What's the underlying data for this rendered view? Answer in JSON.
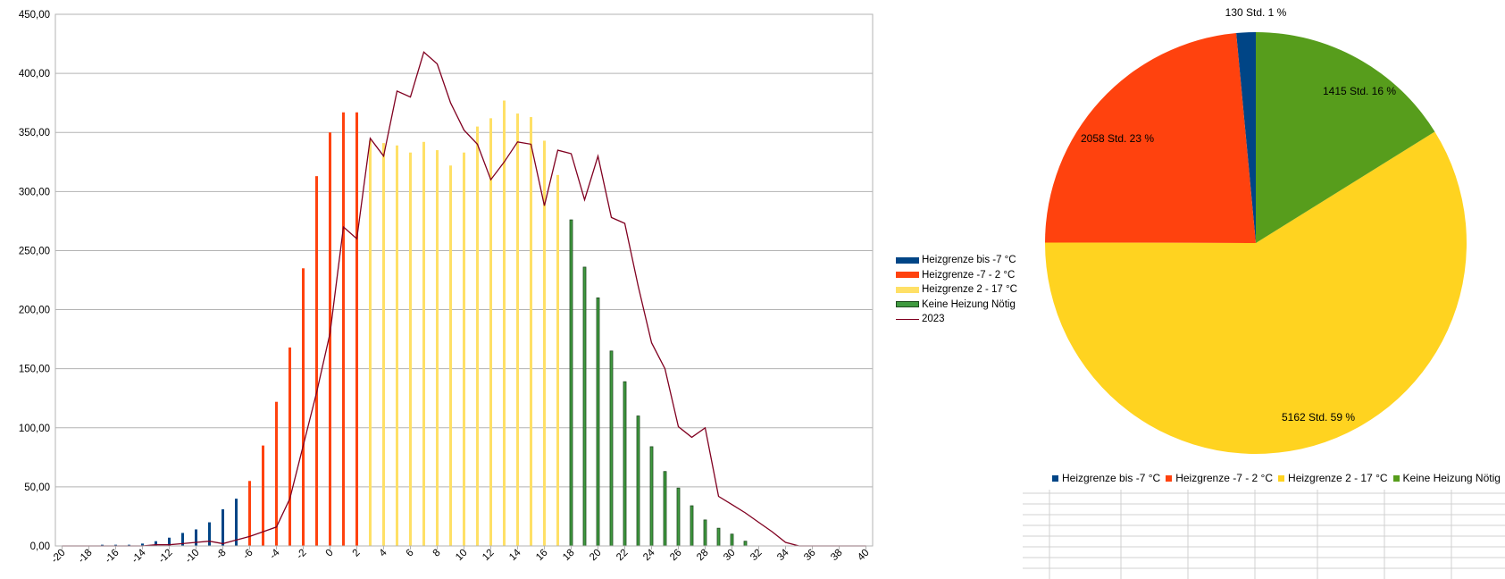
{
  "chart_data": [
    {
      "type": "bar",
      "title": "",
      "xlabel": "",
      "ylabel": "",
      "ylim": [
        0,
        450
      ],
      "ytick_labels": [
        "0,00",
        "50,00",
        "100,00",
        "150,00",
        "200,00",
        "250,00",
        "300,00",
        "350,00",
        "400,00",
        "450,00"
      ],
      "grid": true,
      "legend_position": "right",
      "x": [
        -20,
        -19,
        -18,
        -17,
        -16,
        -15,
        -14,
        -13,
        -12,
        -11,
        -10,
        -9,
        -8,
        -7,
        -6,
        -5,
        -4,
        -3,
        -2,
        -1,
        0,
        1,
        2,
        3,
        4,
        5,
        6,
        7,
        8,
        9,
        10,
        11,
        12,
        13,
        14,
        15,
        16,
        17,
        18,
        19,
        20,
        21,
        22,
        23,
        24,
        25,
        26,
        27,
        28,
        29,
        30,
        31,
        32,
        33,
        34,
        35,
        36,
        37,
        38,
        39,
        40
      ],
      "xtick_labels": [
        "-20",
        "-18",
        "-16",
        "-14",
        "-12",
        "-10",
        "-8",
        "-6",
        "-4",
        "-2",
        "0",
        "2",
        "4",
        "6",
        "8",
        "10",
        "12",
        "14",
        "16",
        "18",
        "20",
        "22",
        "24",
        "26",
        "28",
        "30",
        "32",
        "34",
        "36",
        "38",
        "40"
      ],
      "series": [
        {
          "name": "Heizgrenze bis -7 °C",
          "color": "#004586",
          "values": [
            0,
            0,
            0,
            1,
            1,
            1,
            2,
            4,
            7,
            11,
            14,
            20,
            31,
            40,
            0,
            0,
            0,
            0,
            0,
            0,
            0,
            0,
            0,
            0,
            0,
            0,
            0,
            0,
            0,
            0,
            0,
            0,
            0,
            0,
            0,
            0,
            0,
            0,
            0,
            0,
            0,
            0,
            0,
            0,
            0,
            0,
            0,
            0,
            0,
            0,
            0,
            0,
            0,
            0,
            0,
            0,
            0,
            0,
            0,
            0,
            0
          ]
        },
        {
          "name": "Heizgrenze -7 - 2 °C",
          "color": "#ff420e",
          "values": [
            0,
            0,
            0,
            0,
            0,
            0,
            0,
            0,
            0,
            0,
            0,
            0,
            0,
            0,
            55,
            85,
            122,
            168,
            235,
            313,
            350,
            367,
            367,
            0,
            0,
            0,
            0,
            0,
            0,
            0,
            0,
            0,
            0,
            0,
            0,
            0,
            0,
            0,
            0,
            0,
            0,
            0,
            0,
            0,
            0,
            0,
            0,
            0,
            0,
            0,
            0,
            0,
            0,
            0,
            0,
            0,
            0,
            0,
            0,
            0,
            0
          ]
        },
        {
          "name": "Heizgrenze 2 - 17 °C",
          "color": "#ffe066",
          "values": [
            0,
            0,
            0,
            0,
            0,
            0,
            0,
            0,
            0,
            0,
            0,
            0,
            0,
            0,
            0,
            0,
            0,
            0,
            0,
            0,
            0,
            0,
            0,
            343,
            341,
            339,
            333,
            342,
            335,
            322,
            333,
            355,
            362,
            377,
            366,
            363,
            343,
            314,
            0,
            0,
            0,
            0,
            0,
            0,
            0,
            0,
            0,
            0,
            0,
            0,
            0,
            0,
            0,
            0,
            0,
            0,
            0,
            0,
            0,
            0,
            0
          ]
        },
        {
          "name": "Keine Heizung Nötig",
          "color": "#3f9a3f",
          "values": [
            0,
            0,
            0,
            0,
            0,
            0,
            0,
            0,
            0,
            0,
            0,
            0,
            0,
            0,
            0,
            0,
            0,
            0,
            0,
            0,
            0,
            0,
            0,
            0,
            0,
            0,
            0,
            0,
            0,
            0,
            0,
            0,
            0,
            0,
            0,
            0,
            0,
            0,
            276,
            236,
            210,
            165,
            139,
            110,
            84,
            63,
            49,
            34,
            22,
            15,
            10,
            4,
            0,
            0,
            0,
            0,
            0,
            0,
            0,
            0,
            0
          ]
        },
        {
          "name": "2023",
          "color": "#800020",
          "type": "line",
          "values": [
            0,
            0,
            0,
            0,
            0,
            0,
            0,
            1,
            1,
            2,
            3,
            4,
            2,
            5,
            8,
            12,
            16,
            40,
            85,
            130,
            180,
            270,
            260,
            345,
            330,
            385,
            380,
            418,
            408,
            375,
            352,
            340,
            310,
            325,
            342,
            340,
            288,
            335,
            332,
            293,
            330,
            278,
            273,
            220,
            172,
            150,
            101,
            92,
            100,
            42,
            35,
            28,
            20,
            12,
            3,
            0,
            0,
            0,
            0,
            0,
            0
          ]
        }
      ]
    },
    {
      "type": "pie",
      "title": "",
      "legend_position": "bottom",
      "slices": [
        {
          "name": "Heizgrenze bis -7 °C",
          "value": 130,
          "percent": 1,
          "label": "130 Std. 1 %",
          "color": "#004586"
        },
        {
          "name": "Heizgrenze -7 - 2 °C",
          "value": 2058,
          "percent": 23,
          "label": "2058 Std. 23 %",
          "color": "#ff420e"
        },
        {
          "name": "Heizgrenze 2 - 17 °C",
          "value": 5162,
          "percent": 59,
          "label": "5162 Std. 59 %",
          "color": "#ffd320"
        },
        {
          "name": "Keine Heizung Nötig",
          "value": 1415,
          "percent": 16,
          "label": "1415 Std. 16 %",
          "color": "#579d1c"
        }
      ]
    }
  ]
}
